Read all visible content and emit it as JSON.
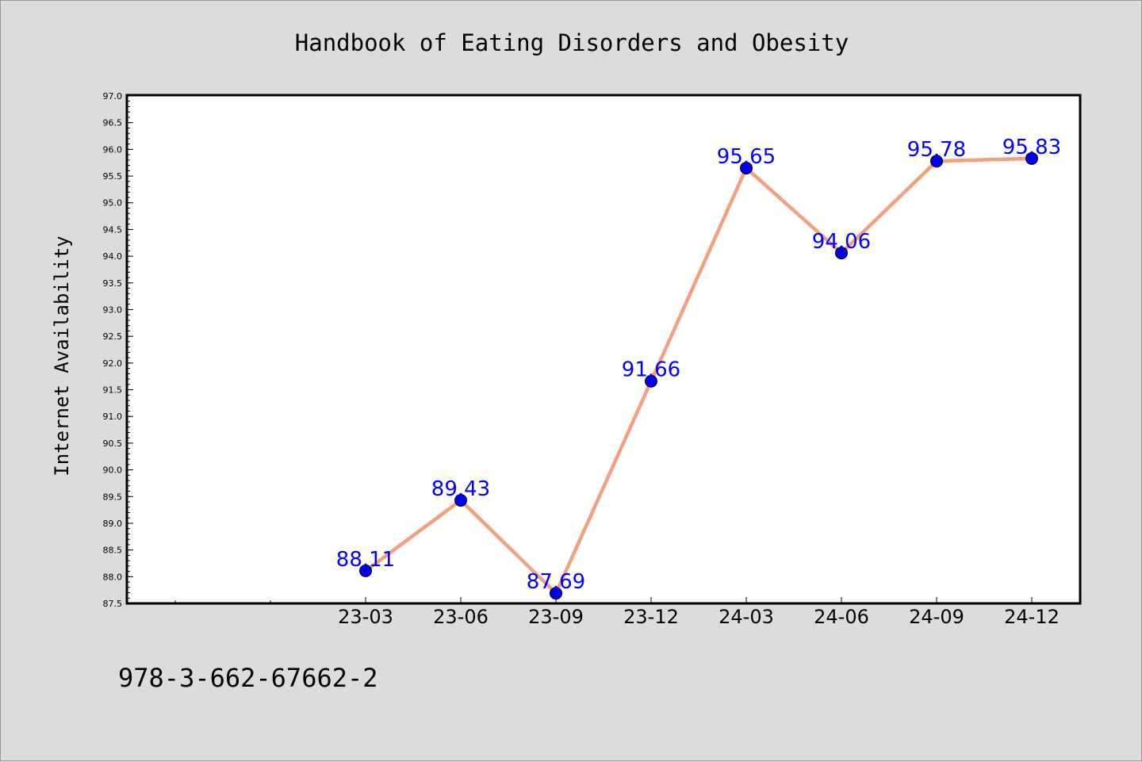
{
  "chart_data": {
    "type": "line",
    "title": "Handbook of Eating Disorders and Obesity",
    "ylabel": "Internet Availability",
    "xlabel": "",
    "footer_text": "978-3-662-67662-2",
    "categories": [
      "23-03",
      "23-06",
      "23-09",
      "23-12",
      "24-03",
      "24-06",
      "24-09",
      "24-12"
    ],
    "series": [
      {
        "values": [
          88.11,
          89.43,
          87.69,
          91.66,
          95.65,
          94.06,
          95.78,
          95.83
        ],
        "data_labels": [
          "88.11",
          "89.43",
          "87.69",
          "91.66",
          "95.65",
          "94.06",
          "95.78",
          "95.83"
        ]
      }
    ],
    "ylim": [
      87.5,
      97.0
    ],
    "yticks": [
      "87.5",
      "88.0",
      "88.5",
      "89.0",
      "89.5",
      "90.0",
      "90.5",
      "91.0",
      "91.5",
      "92.0",
      "92.5",
      "93.0",
      "93.5",
      "94.0",
      "94.5",
      "95.0",
      "95.5",
      "96.0",
      "96.5",
      "97.0"
    ],
    "grid": false,
    "legend": "none",
    "colors": {
      "line": "#f4a07e",
      "marker": "#0000ee",
      "data_label": "#0000ff",
      "plot_background": "#ffffff",
      "figure_background": "#dcdcdc",
      "axis": "#000000"
    }
  }
}
